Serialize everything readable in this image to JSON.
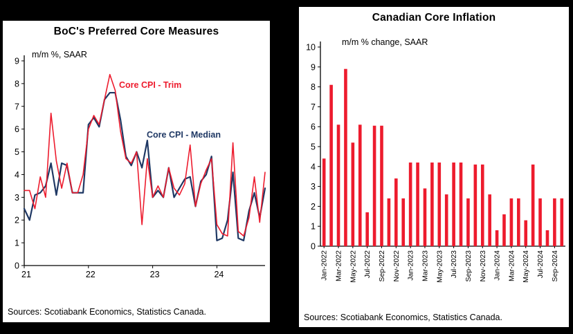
{
  "colors": {
    "accent_red": "#ed1b2d",
    "navy": "#1f3864",
    "panel_background": "#ffffff",
    "page_background": "#000000"
  },
  "left_panel": {
    "title": "BoC's Preferred Core Measures",
    "subtitle": "m/m %, SAAR",
    "sources": "Sources: Scotiabank Economics, Statistics Canada."
  },
  "right_panel": {
    "title": "Canadian Core Inflation",
    "subtitle": "m/m % change, SAAR",
    "sources": "Sources: Scotiabank Economics, Statistics Canada."
  },
  "chart_data": [
    {
      "type": "line",
      "title": "BoC's Preferred Core Measures",
      "subtitle": "m/m %, SAAR",
      "x_start": "Jan-2021",
      "x_end": "Oct-2024",
      "x_frequency": "monthly",
      "xtick_labels": [
        "21",
        "22",
        "23",
        "24"
      ],
      "xtick_indices": [
        0,
        12,
        24,
        36
      ],
      "ylim": [
        0,
        9
      ],
      "ytick_step": 1,
      "grid": false,
      "legend_position": "inline-annotations",
      "series": [
        {
          "name": "Core CPI - Trim",
          "color": "#ed1b2d",
          "values": [
            3.3,
            3.3,
            2.5,
            3.9,
            3.0,
            6.7,
            4.6,
            3.4,
            4.5,
            3.2,
            3.2,
            4.0,
            6.0,
            6.6,
            6.2,
            7.3,
            8.4,
            7.7,
            5.9,
            4.7,
            4.5,
            5.0,
            1.8,
            4.7,
            3.0,
            3.5,
            3.0,
            4.3,
            3.4,
            3.1,
            3.6,
            5.3,
            2.6,
            3.6,
            4.2,
            4.7,
            1.8,
            1.4,
            1.3,
            5.4,
            1.5,
            1.3,
            2.1,
            3.9,
            1.9,
            4.1
          ]
        },
        {
          "name": "Core CPI - Median",
          "color": "#1f3864",
          "values": [
            2.5,
            2.0,
            3.1,
            3.2,
            3.5,
            4.5,
            3.1,
            4.5,
            4.4,
            3.2,
            3.2,
            3.2,
            6.2,
            6.5,
            6.1,
            7.3,
            7.6,
            7.6,
            6.4,
            4.8,
            4.4,
            5.0,
            4.3,
            5.5,
            3.0,
            3.3,
            3.0,
            4.3,
            3.0,
            3.4,
            3.8,
            3.9,
            2.6,
            3.7,
            4.0,
            4.8,
            1.1,
            1.2,
            2.0,
            4.1,
            1.2,
            1.1,
            2.4,
            3.2,
            2.1,
            3.4
          ]
        }
      ]
    },
    {
      "type": "bar",
      "title": "Canadian Core Inflation",
      "subtitle": "m/m % change, SAAR",
      "ylim": [
        0,
        10
      ],
      "ytick_step": 1,
      "grid": false,
      "bar_color": "#ed1b2d",
      "xtick_every": 2,
      "categories": [
        "Jan-2022",
        "Feb-2022",
        "Mar-2022",
        "Apr-2022",
        "May-2022",
        "Jun-2022",
        "Jul-2022",
        "Aug-2022",
        "Sep-2022",
        "Oct-2022",
        "Nov-2022",
        "Dec-2022",
        "Jan-2023",
        "Feb-2023",
        "Mar-2023",
        "Apr-2023",
        "May-2023",
        "Jun-2023",
        "Jul-2023",
        "Aug-2023",
        "Sep-2023",
        "Oct-2023",
        "Nov-2023",
        "Dec-2023",
        "Jan-2024",
        "Feb-2024",
        "Mar-2024",
        "Apr-2024",
        "May-2024",
        "Jun-2024",
        "Jul-2024",
        "Aug-2024",
        "Sep-2024",
        "Oct-2024"
      ],
      "values": [
        4.4,
        8.1,
        6.1,
        8.9,
        5.2,
        6.1,
        1.7,
        6.05,
        6.05,
        2.4,
        3.4,
        2.4,
        4.2,
        4.2,
        2.9,
        4.2,
        4.2,
        2.6,
        4.2,
        4.2,
        2.4,
        4.1,
        4.1,
        2.6,
        0.8,
        1.6,
        2.4,
        2.4,
        1.3,
        4.1,
        2.4,
        0.8,
        2.4,
        2.4
      ]
    }
  ]
}
